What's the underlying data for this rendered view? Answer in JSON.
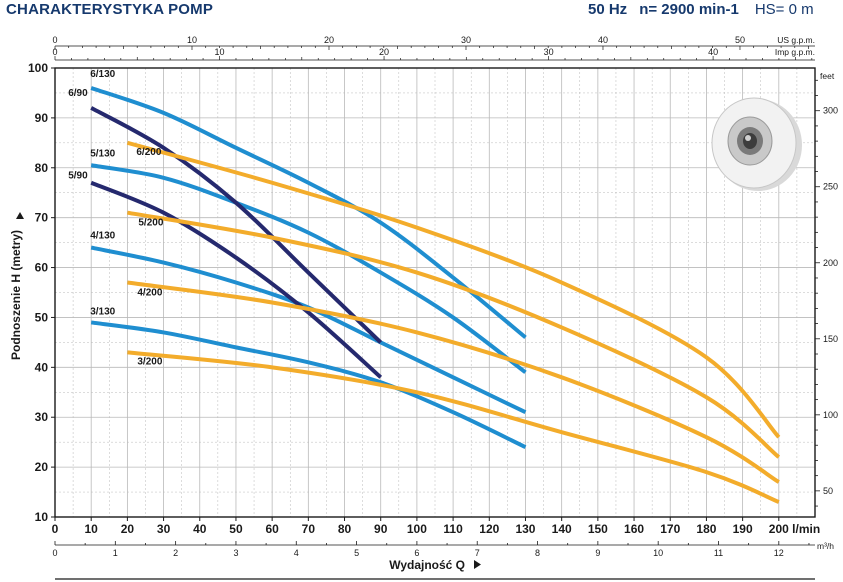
{
  "header": {
    "title": "CHARAKTERYSTYKA POMP",
    "freq": "50 Hz",
    "speed": "n= 2900 min-1",
    "suction": "HS= 0 m"
  },
  "colors": {
    "blue": "#1f8ed0",
    "navy": "#25296e",
    "orange": "#f3ac2b",
    "grid": "#b9b9b9",
    "axis": "#1a1a1a"
  },
  "impeller_image": "impeller-disc",
  "chart_data": {
    "type": "line",
    "xlabel": "Wydajność Q",
    "ylabel": "Podnoszenie H (metry)",
    "x_unit": "l/min",
    "xlim": [
      0,
      210
    ],
    "ylim": [
      10,
      100
    ],
    "x_ticks": [
      "0",
      "10",
      "20",
      "30",
      "40",
      "50",
      "60",
      "70",
      "80",
      "90",
      "100",
      "110",
      "120",
      "130",
      "140",
      "150",
      "160",
      "170",
      "180",
      "190",
      "200"
    ],
    "x_tick_last_label": "200 l/min",
    "y_ticks": [
      10,
      20,
      30,
      40,
      50,
      60,
      70,
      80,
      90,
      100
    ],
    "top_axes": [
      {
        "unit": "US g.p.m.",
        "ticks": [
          0,
          10,
          20,
          30,
          40,
          50
        ]
      },
      {
        "unit": "Imp g.p.m.",
        "ticks": [
          0,
          10,
          20,
          30,
          40
        ]
      }
    ],
    "bottom_axis": {
      "unit": "m³/h",
      "ticks": [
        0,
        1,
        2,
        3,
        4,
        5,
        6,
        7,
        8,
        9,
        10,
        11,
        12
      ]
    },
    "right_axis": {
      "unit": "feet",
      "ticks": [
        50,
        100,
        150,
        200,
        250,
        300
      ]
    },
    "series": [
      {
        "name": "6/130",
        "color": "blue",
        "x": [
          10,
          30,
          50,
          70,
          90,
          110,
          130
        ],
        "y": [
          96,
          91,
          84,
          77,
          69,
          58,
          46
        ]
      },
      {
        "name": "5/130",
        "color": "blue",
        "x": [
          10,
          30,
          50,
          70,
          90,
          110,
          130
        ],
        "y": [
          80.5,
          78,
          73,
          67,
          59,
          50,
          39
        ]
      },
      {
        "name": "4/130",
        "color": "blue",
        "x": [
          10,
          30,
          50,
          70,
          90,
          110,
          130
        ],
        "y": [
          64,
          61,
          57,
          52,
          45,
          38,
          31
        ]
      },
      {
        "name": "3/130",
        "color": "blue",
        "x": [
          10,
          30,
          50,
          70,
          90,
          110,
          130
        ],
        "y": [
          49,
          47,
          44,
          41,
          37,
          31,
          24
        ]
      },
      {
        "name": "6/90",
        "color": "navy",
        "x": [
          10,
          30,
          50,
          70,
          90
        ],
        "y": [
          92,
          84,
          73,
          59,
          45
        ]
      },
      {
        "name": "5/90",
        "color": "navy",
        "x": [
          10,
          30,
          50,
          70,
          90
        ],
        "y": [
          77,
          71,
          62,
          51,
          38
        ]
      },
      {
        "name": "6/200",
        "color": "orange",
        "x": [
          20,
          60,
          100,
          140,
          180,
          200
        ],
        "y": [
          85,
          77,
          68,
          57,
          42,
          26
        ]
      },
      {
        "name": "5/200",
        "color": "orange",
        "x": [
          20,
          60,
          100,
          140,
          180,
          200
        ],
        "y": [
          71,
          66,
          59,
          48,
          34,
          22
        ]
      },
      {
        "name": "4/200",
        "color": "orange",
        "x": [
          20,
          60,
          100,
          140,
          180,
          200
        ],
        "y": [
          57,
          53,
          47,
          38,
          26,
          17
        ]
      },
      {
        "name": "3/200",
        "color": "orange",
        "x": [
          20,
          60,
          100,
          140,
          180,
          200
        ],
        "y": [
          43,
          40,
          35,
          27,
          19,
          13
        ]
      }
    ]
  }
}
